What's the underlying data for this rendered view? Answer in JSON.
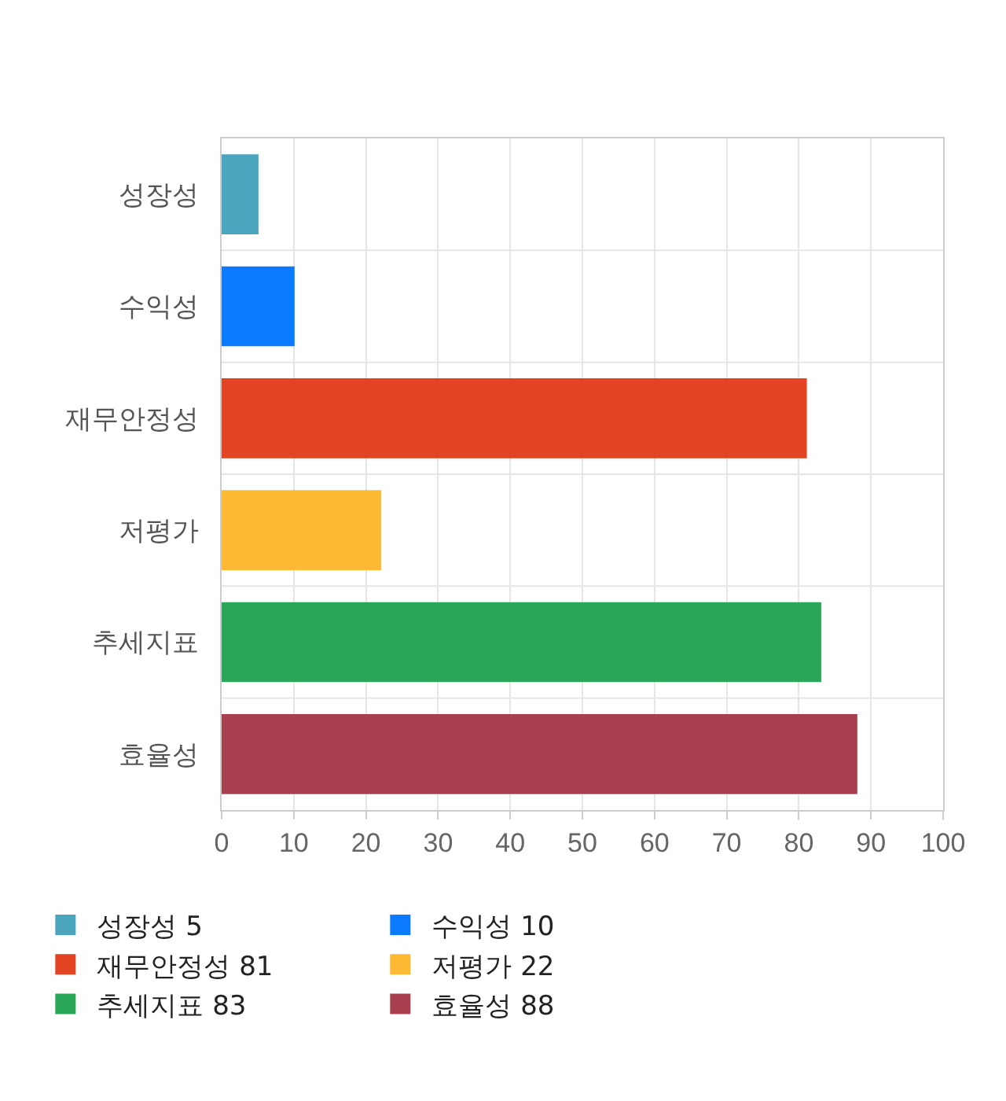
{
  "chart_data": {
    "type": "bar",
    "orientation": "horizontal",
    "categories": [
      "성장성",
      "수익성",
      "재무안정성",
      "저평가",
      "추세지표",
      "효율성"
    ],
    "series": [
      {
        "name": "성장성 5",
        "color": "#4ca5be",
        "values": [
          5,
          null,
          null,
          null,
          null,
          null
        ]
      },
      {
        "name": "수익성 10",
        "color": "#0a7bff",
        "values": [
          null,
          10,
          null,
          null,
          null,
          null
        ]
      },
      {
        "name": "재무안정성 81",
        "color": "#e24424",
        "values": [
          null,
          null,
          81,
          null,
          null,
          null
        ]
      },
      {
        "name": "저평가 22",
        "color": "#fdb933",
        "values": [
          null,
          null,
          null,
          22,
          null,
          null
        ]
      },
      {
        "name": "추세지표 83",
        "color": "#29a658",
        "values": [
          null,
          null,
          null,
          null,
          83,
          null
        ]
      },
      {
        "name": "효율성 88",
        "color": "#a8404f",
        "values": [
          null,
          null,
          null,
          null,
          null,
          88
        ]
      }
    ],
    "xlim": [
      0,
      100
    ],
    "xticks": [
      0,
      10,
      20,
      30,
      40,
      50,
      60,
      70,
      80,
      90,
      100
    ],
    "grid": true,
    "legend": "bottom"
  }
}
